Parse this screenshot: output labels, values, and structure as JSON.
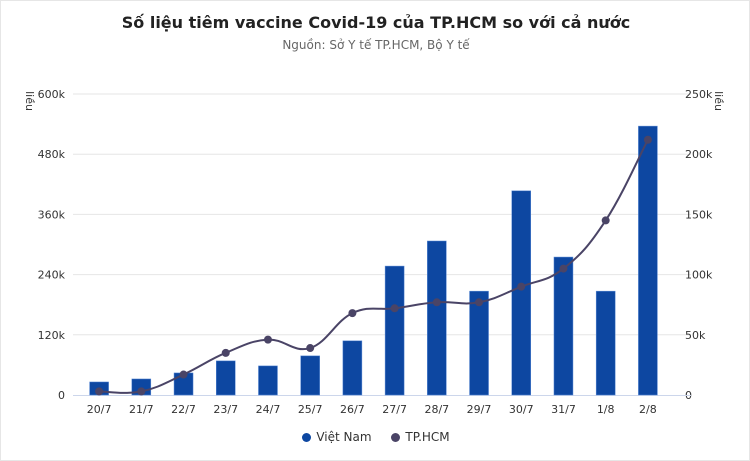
{
  "chart_data": {
    "type": "bar+line",
    "title": "Số liệu tiêm vaccine Covid-19 của TP.HCM so với cả nước",
    "subtitle": "Nguồn: Sở Y tế TP.HCM, Bộ Y tế",
    "categories": [
      "20/7",
      "21/7",
      "22/7",
      "23/7",
      "24/7",
      "25/7",
      "26/7",
      "27/7",
      "28/7",
      "29/7",
      "30/7",
      "31/7",
      "1/8",
      "2/8"
    ],
    "ylabel_left": "liều",
    "ylabel_right": "liều",
    "ylim_left": [
      0,
      600000
    ],
    "ylim_right": [
      0,
      250000
    ],
    "yticks_left": [
      "0",
      "120k",
      "240k",
      "360k",
      "480k",
      "600k"
    ],
    "yticks_right": [
      "0",
      "50k",
      "100k",
      "150k",
      "200k",
      "250k"
    ],
    "grid": true,
    "legend_position": "bottom",
    "series": [
      {
        "name": "Việt Nam",
        "type": "bar",
        "axis": "left",
        "color": "#0d47a1",
        "values": [
          26000,
          32000,
          44000,
          68000,
          58000,
          78000,
          108000,
          257000,
          307000,
          207000,
          407000,
          275000,
          207000,
          536000
        ]
      },
      {
        "name": "TP.HCM",
        "type": "line",
        "axis": "right",
        "color": "#4a4466",
        "values": [
          3000,
          3000,
          17000,
          35000,
          46000,
          39000,
          68000,
          72000,
          77000,
          77000,
          90000,
          105000,
          145000,
          212000
        ]
      }
    ]
  }
}
